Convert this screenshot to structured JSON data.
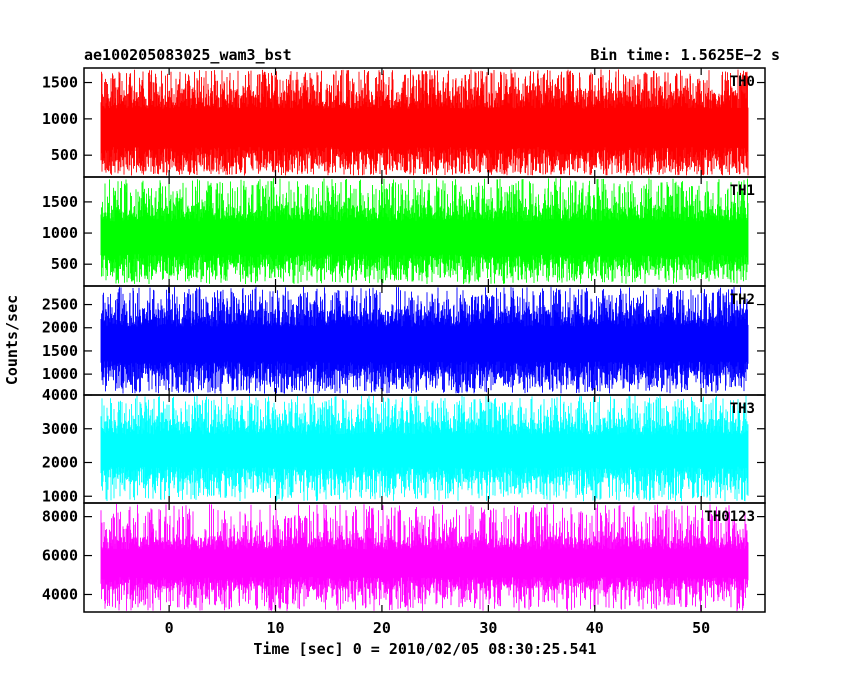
{
  "header": {
    "left": "ae100205083025_wam3_bst",
    "right": "Bin time: 1.5625E−2 s"
  },
  "chart_data": {
    "type": "line",
    "x_label": "Time [sec] 0 = 2010/02/05 08:30:25.541",
    "y_label": "Counts/sec",
    "x_range": [
      -8.0,
      56.0
    ],
    "x_ticks": [
      0,
      10,
      20,
      30,
      40,
      50
    ],
    "bin_time_s": 0.015625,
    "panels": [
      {
        "label": "TH0",
        "color": "#ff0000",
        "y_range": [
          200,
          1700
        ],
        "y_ticks": [
          500,
          1000,
          1500
        ],
        "typical_low": 350,
        "typical_high": 1400,
        "spike_low": 220,
        "spike_high": 1680
      },
      {
        "label": "TH1",
        "color": "#00ff00",
        "y_range": [
          150,
          1900
        ],
        "y_ticks": [
          500,
          1000,
          1500
        ],
        "typical_low": 400,
        "typical_high": 1450,
        "spike_low": 180,
        "spike_high": 1880
      },
      {
        "label": "TH2",
        "color": "#0000ff",
        "y_range": [
          550,
          2900
        ],
        "y_ticks": [
          1000,
          1500,
          2000,
          2500
        ],
        "typical_low": 900,
        "typical_high": 2400,
        "spike_low": 580,
        "spike_high": 2880
      },
      {
        "label": "TH3",
        "color": "#00ffff",
        "y_range": [
          800,
          4000
        ],
        "y_ticks": [
          1000,
          2000,
          3000,
          4000
        ],
        "typical_low": 1400,
        "typical_high": 3300,
        "spike_low": 850,
        "spike_high": 3980
      },
      {
        "label": "TH0123",
        "color": "#ff00ff",
        "y_range": [
          3100,
          8700
        ],
        "y_ticks": [
          4000,
          6000,
          8000
        ],
        "typical_low": 4200,
        "typical_high": 7000,
        "spike_low": 3150,
        "spike_high": 8650
      }
    ]
  }
}
